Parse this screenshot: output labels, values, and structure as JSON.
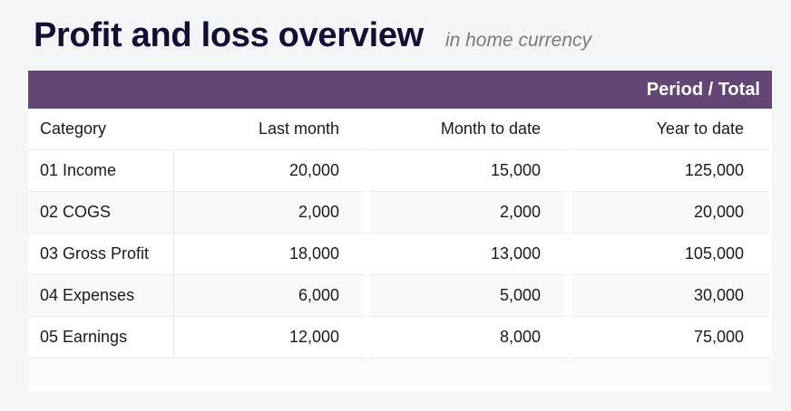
{
  "header": {
    "title": "Profit and loss overview",
    "subtitle": "in home currency"
  },
  "table": {
    "band_label": "Period / Total",
    "columns": [
      "Category",
      "Last month",
      "Month to date",
      "Year to date"
    ],
    "rows": [
      {
        "category": "01 Income",
        "last_month": "20,000",
        "month_to_date": "15,000",
        "year_to_date": "125,000"
      },
      {
        "category": "02 COGS",
        "last_month": "2,000",
        "month_to_date": "2,000",
        "year_to_date": "20,000"
      },
      {
        "category": "03 Gross Profit",
        "last_month": "18,000",
        "month_to_date": "13,000",
        "year_to_date": "105,000"
      },
      {
        "category": "04 Expenses",
        "last_month": "6,000",
        "month_to_date": "5,000",
        "year_to_date": "30,000"
      },
      {
        "category": "05 Earnings",
        "last_month": "12,000",
        "month_to_date": "8,000",
        "year_to_date": "75,000"
      }
    ]
  },
  "colors": {
    "band": "#634576",
    "title": "#0f1033",
    "subtitle": "#7a7a7a",
    "background": "#f3f6f6"
  }
}
